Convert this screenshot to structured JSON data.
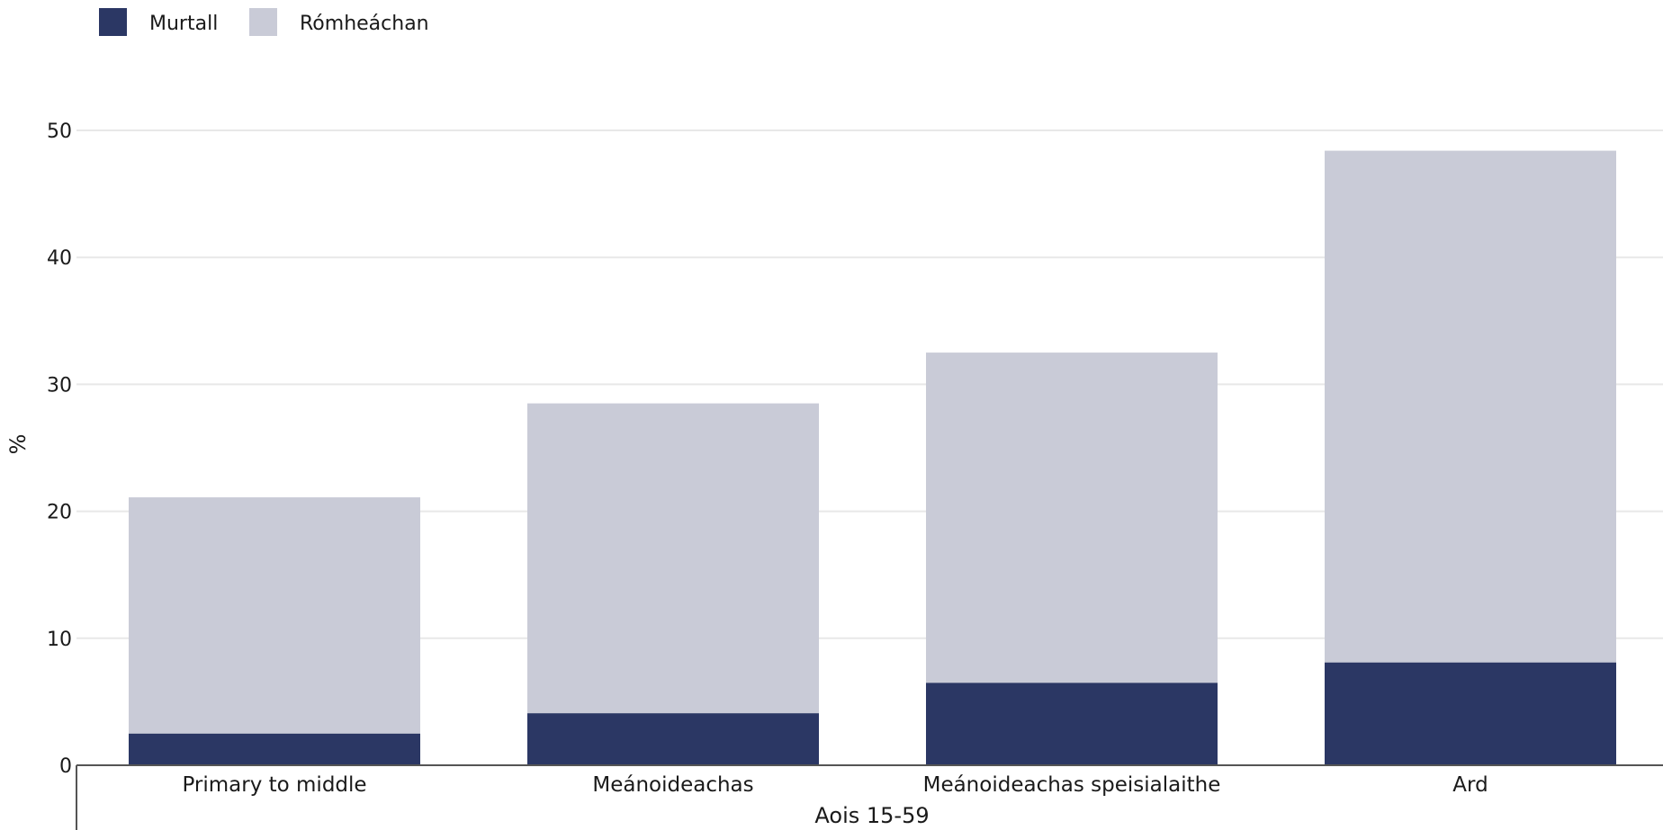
{
  "chart_data": {
    "type": "bar",
    "stacked": true,
    "categories": [
      "Primary to middle",
      "Meánoideachas",
      "Meánoideachas speisialaithe",
      "Ard"
    ],
    "series": [
      {
        "name": "Murtall",
        "values": [
          2.5,
          4.1,
          6.5,
          8.1
        ],
        "color": "#2b3764"
      },
      {
        "name": "Rómheáchan",
        "values": [
          18.6,
          24.4,
          26.0,
          40.3
        ],
        "color": "#c9cbd7"
      }
    ],
    "xlabel": "Aois 15-59",
    "ylabel": "%",
    "ylim": [
      0,
      50
    ],
    "yticks": [
      0,
      10,
      20,
      30,
      40,
      50
    ],
    "grid": true,
    "legend_position": "top-left",
    "colors": {
      "gridline": "#e8e8e8",
      "axis": "#555555"
    }
  }
}
